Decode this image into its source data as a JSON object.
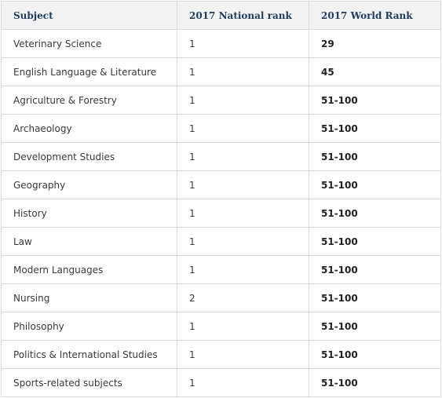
{
  "table": {
    "headers": [
      "Subject",
      "2017 National rank",
      "2017 World Rank"
    ],
    "rows": [
      {
        "subject": "Veterinary Science",
        "national": "1",
        "world": "29"
      },
      {
        "subject": "English Language & Literature",
        "national": "1",
        "world": "45"
      },
      {
        "subject": "Agriculture & Forestry",
        "national": "1",
        "world": "51-100"
      },
      {
        "subject": "Archaeology",
        "national": "1",
        "world": "51-100"
      },
      {
        "subject": "Development Studies",
        "national": "1",
        "world": "51-100"
      },
      {
        "subject": "Geography",
        "national": "1",
        "world": "51-100"
      },
      {
        "subject": "History",
        "national": "1",
        "world": "51-100"
      },
      {
        "subject": "Law",
        "national": "1",
        "world": "51-100"
      },
      {
        "subject": "Modern Languages",
        "national": "1",
        "world": "51-100"
      },
      {
        "subject": "Nursing",
        "national": "2",
        "world": "51-100"
      },
      {
        "subject": "Philosophy",
        "national": "1",
        "world": "51-100"
      },
      {
        "subject": "Politics & International Studies",
        "national": "1",
        "world": "51-100"
      },
      {
        "subject": "Sports-related subjects",
        "national": "1",
        "world": "51-100"
      }
    ]
  },
  "colors": {
    "header_text": "#1f3c5a",
    "header_bg": "#f2f2f2",
    "border": "#d9d9d9"
  }
}
